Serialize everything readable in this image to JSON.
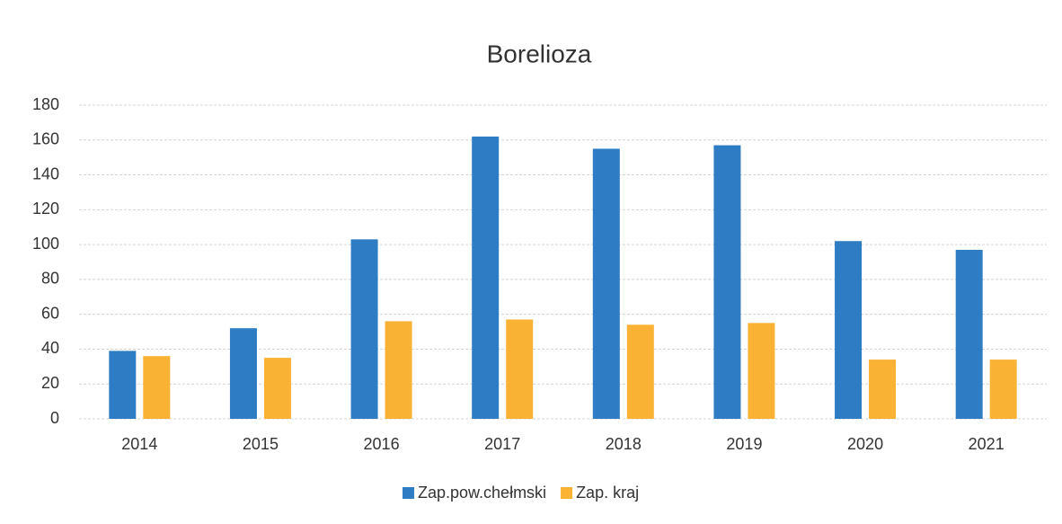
{
  "chart_data": {
    "type": "bar",
    "title": "Borelioza",
    "categories": [
      "2014",
      "2015",
      "2016",
      "2017",
      "2018",
      "2019",
      "2020",
      "2021"
    ],
    "series": [
      {
        "name": "Zap.pow.chełmski",
        "color": "#2e7dc4",
        "values": [
          39,
          52,
          103,
          162,
          155,
          157,
          102,
          97
        ]
      },
      {
        "name": "Zap. kraj",
        "color": "#f9b233",
        "values": [
          36,
          35,
          56,
          57,
          54,
          55,
          34,
          34
        ]
      }
    ],
    "ylim": [
      0,
      180
    ],
    "yticks": [
      0,
      20,
      40,
      60,
      80,
      100,
      120,
      140,
      160,
      180
    ],
    "grid": true,
    "legend": "bottom"
  }
}
